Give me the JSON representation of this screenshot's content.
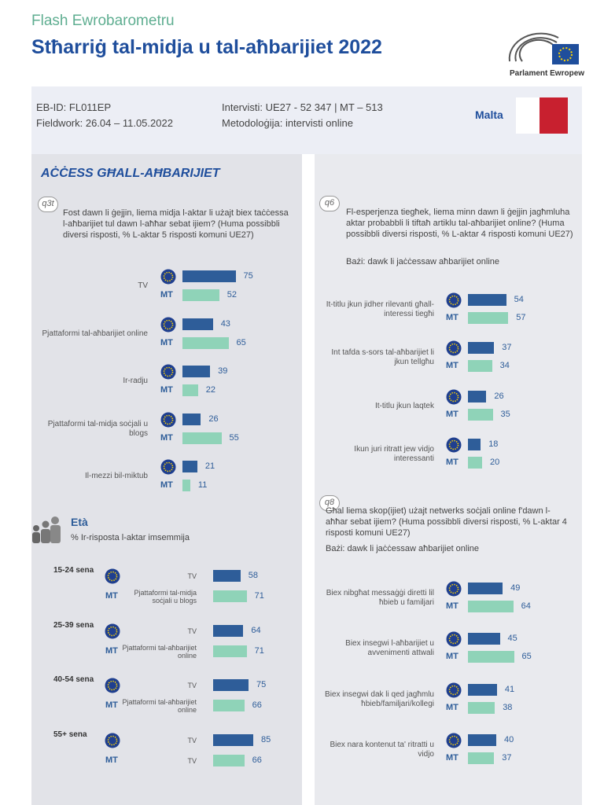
{
  "header": {
    "kicker": "Flash Ewrobarometru",
    "title": "Stħarriġ tal-midja u tal-aħbarijiet 2022",
    "logo_text": "Parlament Ewropew"
  },
  "info": {
    "eb_id": "EB-ID: FL011EP",
    "fieldwork": "Fieldwork: 26.04 – 11.05.2022",
    "interviews": "Intervisti: UE27 - 52 347 | MT – 513",
    "methodology": "Metodoloġija: intervisti online",
    "country": "Malta"
  },
  "section_title": "AĊĊESS GĦALL-AĦBARIJIET",
  "mt_label": "MT",
  "q3t": {
    "code": "q3t",
    "question": "Fost dawn li ġejjin, liema midja l-aktar li użajt biex taċċessa l-aħbarijiet tul dawn l-aħħar sebat ijiem? (Huma possibbli diversi risposti, % L-aktar 5 risposti komuni UE27)",
    "items": [
      {
        "label": "TV",
        "eu": 75,
        "mt": 52
      },
      {
        "label": "Pjattaformi tal-aħbarijiet online",
        "eu": 43,
        "mt": 65
      },
      {
        "label": "Ir-radju",
        "eu": 39,
        "mt": 22
      },
      {
        "label": "Pjattaformi tal-midja soċjali u blogs",
        "eu": 26,
        "mt": 55
      },
      {
        "label": "Il-mezzi bil-miktub",
        "eu": 21,
        "mt": 11
      }
    ]
  },
  "age": {
    "title": "Età",
    "subtitle": "% Ir-risposta l-aktar imsemmija",
    "groups": [
      {
        "age": "15-24 sena",
        "eu_label": "TV",
        "eu": 58,
        "mt_label": "Pjattaformi tal-midja soċjali u blogs",
        "mt": 71
      },
      {
        "age": "25-39 sena",
        "eu_label": "TV",
        "eu": 64,
        "mt_label": "Pjattaformi tal-aħbarijiet online",
        "mt": 71
      },
      {
        "age": "40-54 sena",
        "eu_label": "TV",
        "eu": 75,
        "mt_label": "Pjattaformi tal-aħbarijiet online",
        "mt": 66
      },
      {
        "age": "55+ sena",
        "eu_label": "TV",
        "eu": 85,
        "mt_label": "TV",
        "mt": 66
      }
    ]
  },
  "q6": {
    "code": "q6",
    "question": "Fl-esperjenza tiegħek, liema minn dawn li ġejjin jagħmluha aktar probabbli li tiftaħ artiklu tal-aħbarijiet online? (Huma possibbli diversi risposti, % L-aktar 4 risposti komuni UE27)",
    "base": "Bażi: dawk li jaċċessaw aħbarijiet online",
    "items": [
      {
        "label": "It-titlu jkun jidher rilevanti għall-interessi tiegħi",
        "eu": 54,
        "mt": 57
      },
      {
        "label": "Int tafda s-sors tal-aħbarijiet li jkun tellgħu",
        "eu": 37,
        "mt": 34
      },
      {
        "label": "It-titlu jkun laqtek",
        "eu": 26,
        "mt": 35
      },
      {
        "label": "Ikun juri ritratt jew vidjo interessanti",
        "eu": 18,
        "mt": 20
      }
    ]
  },
  "q8": {
    "code": "q8",
    "question": "Għal liema skop(ijiet) użajt netwerks soċjali online f'dawn l-aħħar sebat ijiem? (Huma possibbli diversi risposti, % L-aktar 4 risposti komuni UE27)",
    "base": "Bażi: dawk li jaċċessaw aħbarijiet online",
    "items": [
      {
        "label": "Biex nibgħat messaġġi diretti lil ħbieb u familjari",
        "eu": 49,
        "mt": 64
      },
      {
        "label": "Biex insegwi l-aħbarijiet u avvenimenti attwali",
        "eu": 45,
        "mt": 65
      },
      {
        "label": "Biex insegwi dak li qed jagħmlu ħbieb/familjari/kollegi",
        "eu": 41,
        "mt": 38
      },
      {
        "label": "Biex nara kontenut ta' ritratti u vidjo",
        "eu": 40,
        "mt": 37
      }
    ]
  }
}
